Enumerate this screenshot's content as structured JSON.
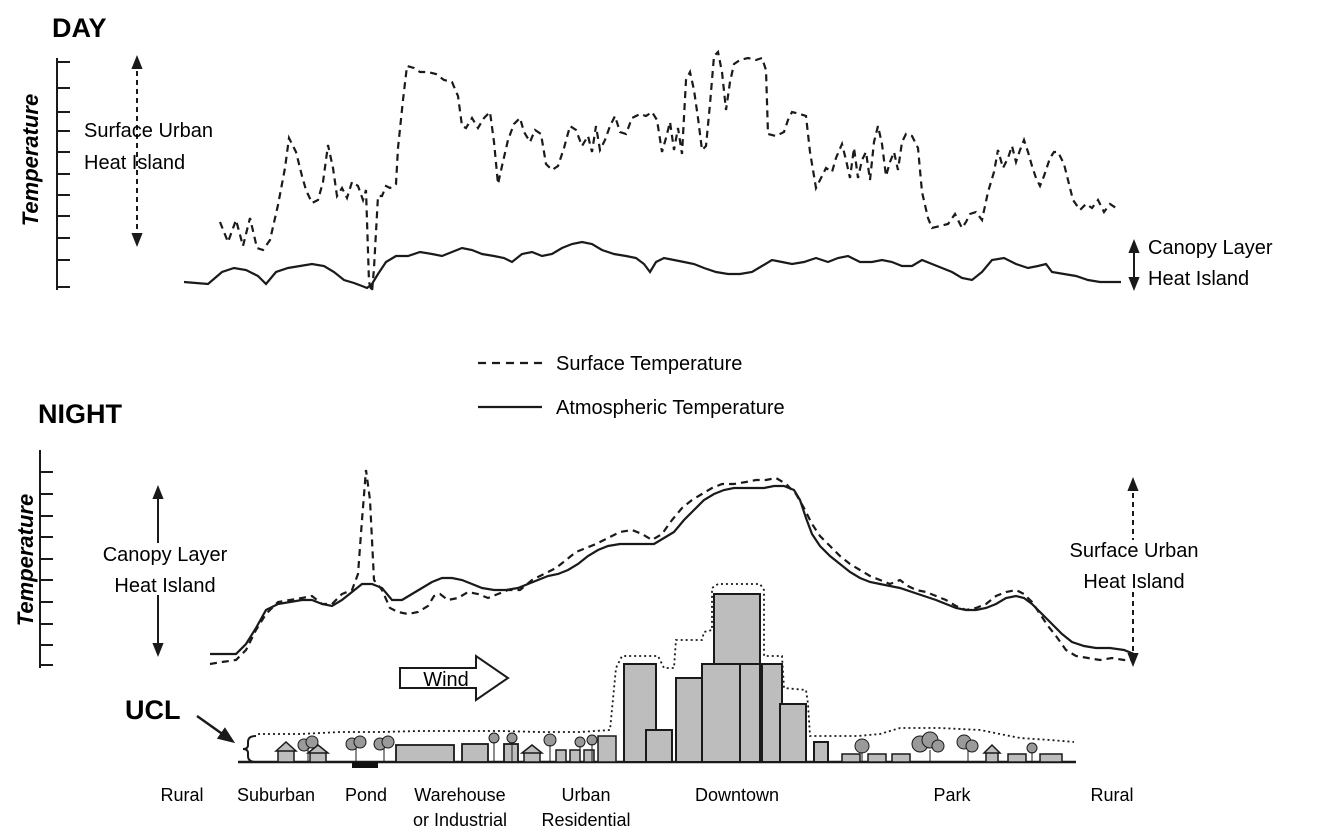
{
  "day": {
    "title": "DAY",
    "axis_title": "Temperature",
    "left_label_line1": "Surface Urban",
    "left_label_line2": "Heat Island",
    "right_label_line1": "Canopy Layer",
    "right_label_line2": "Heat Island"
  },
  "legend": {
    "surface": "Surface Temperature",
    "atmospheric": "Atmospheric Temperature"
  },
  "night": {
    "title": "NIGHT",
    "axis_title": "Temperature",
    "left_label_line1": "Canopy Layer",
    "left_label_line2": "Heat Island",
    "right_label_line1": "Surface Urban",
    "right_label_line2": "Heat Island"
  },
  "wind_label": "Wind",
  "ucl_label": "UCL",
  "zones": [
    {
      "line1": "Rural",
      "line2": ""
    },
    {
      "line1": "Suburban",
      "line2": ""
    },
    {
      "line1": "Pond",
      "line2": ""
    },
    {
      "line1": "Warehouse",
      "line2": "or Industrial"
    },
    {
      "line1": "Urban",
      "line2": "Residential"
    },
    {
      "line1": "Downtown",
      "line2": ""
    },
    {
      "line1": "Park",
      "line2": ""
    },
    {
      "line1": "Rural",
      "line2": ""
    }
  ],
  "colors": {
    "ink": "#1a1a1a",
    "building_fill": "#bdbdbd",
    "tree_fill": "#9a9a9a",
    "pond": "#111111"
  }
}
